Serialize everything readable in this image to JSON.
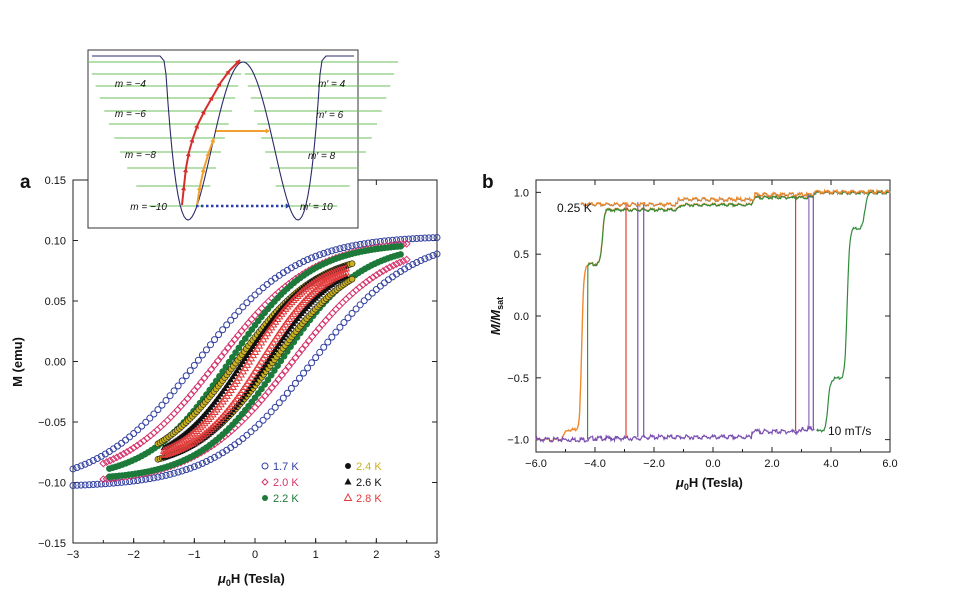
{
  "chart_data": [
    {
      "id": "a",
      "panel_label": "a",
      "type": "scatter",
      "title": "",
      "xlabel_main": "μ",
      "xlabel_sub": "0",
      "xlabel_tail": "H (Tesla)",
      "ylabel": "M (emu)",
      "xlim": [
        -3,
        3
      ],
      "ylim": [
        -0.15,
        0.15
      ],
      "x_ticks": [
        -3,
        -2,
        -1,
        0,
        1,
        2,
        3
      ],
      "x_tick_labels": [
        "−3",
        "−2",
        "−1",
        "0",
        "1",
        "2",
        "3"
      ],
      "y_ticks": [
        0.15,
        0.1,
        0.05,
        0,
        -0.05,
        -0.1,
        -0.15
      ],
      "y_tick_labels": [
        "0.15",
        "0.10",
        "0.05",
        "0.00",
        "−0.05",
        "−0.10",
        "−0.15"
      ],
      "legend_position": "bottom-right",
      "series": [
        {
          "name": "1.7 K",
          "legend": "1.7 K",
          "color": "#3340a0",
          "marker": "circle-open",
          "sweep_max": 3.0,
          "M_sat": 0.104,
          "M_rem": 0.055,
          "H_c": 0.95
        },
        {
          "name": "2.0 K",
          "legend": "2.0 K",
          "color": "#d6336c",
          "marker": "diamond-open",
          "sweep_max": 2.5,
          "M_sat": 0.101,
          "M_rem": 0.038,
          "H_c": 0.62
        },
        {
          "name": "2.2 K",
          "legend": "2.2 K",
          "color": "#1d7a3a",
          "marker": "circle-filled",
          "sweep_max": 2.4,
          "M_sat": 0.098,
          "M_rem": 0.03,
          "H_c": 0.42
        },
        {
          "name": "2.4 K",
          "legend": "2.4 K",
          "color": "#c9b21e",
          "marker": "circle-filled",
          "sweep_max": 1.6,
          "M_sat": 0.091,
          "M_rem": 0.02,
          "H_c": 0.3
        },
        {
          "name": "2.6 K",
          "legend": "2.6 K",
          "color": "#111111",
          "marker": "triangle-filled",
          "sweep_max": 1.5,
          "M_sat": 0.088,
          "M_rem": 0.015,
          "H_c": 0.2
        },
        {
          "name": "2.8 K",
          "legend": "2.8 K",
          "color": "#e23b3b",
          "marker": "triangle-open",
          "sweep_max": 1.5,
          "M_sat": 0.085,
          "M_rem": 0.008,
          "H_c": 0.1
        }
      ]
    },
    {
      "id": "inset",
      "type": "energy-diagram",
      "left_labels": [
        "m = −4",
        "m = −6",
        "m = −8",
        "m = −10"
      ],
      "right_labels": [
        "m′ = 4",
        "m′ = 6",
        "m′ = 8",
        "m′ = 10"
      ],
      "levels": 10,
      "arrow_colors": {
        "thermal": "#d62d2d",
        "assisted": "#f0a030",
        "tunnel": "#2a3fa8"
      }
    },
    {
      "id": "b",
      "panel_label": "b",
      "type": "line",
      "title": "",
      "xlabel_main": "μ",
      "xlabel_sub": "0",
      "xlabel_tail": "H (Tesla)",
      "ylabel_main": "M",
      "ylabel_mid": "/M",
      "ylabel_sub": "sat",
      "xlim": [
        -6,
        6
      ],
      "ylim": [
        -1.1,
        1.1
      ],
      "x_ticks": [
        -6,
        -4,
        -2,
        0,
        2,
        4,
        6
      ],
      "x_tick_labels": [
        "−6.0",
        "−4.0",
        "−2.0",
        "0.0",
        "2.0",
        "4.0",
        "6.0"
      ],
      "y_ticks": [
        1,
        0.5,
        0,
        -0.5,
        -1
      ],
      "y_tick_labels": [
        "1.0",
        "0.5",
        "0.0",
        "−0.5",
        "−1.0"
      ],
      "annotations": [
        "0.25 K",
        "10 mT/s"
      ],
      "series": [
        {
          "name": "sweep-orange",
          "color": "#f08a2a",
          "steps_up": [
            -5.1,
            -4.6,
            -3.7,
            -1.2,
            1.4
          ],
          "jump_field": -4.25
        },
        {
          "name": "sweep-green",
          "color": "#2e8b3a",
          "steps_down": [
            3.9,
            4.5,
            5.1
          ],
          "jump_field": -4.25
        },
        {
          "name": "sweep-red",
          "color": "#e04030",
          "jump_up": -2.95,
          "jump_down": 2.8
        },
        {
          "name": "sweep-purple",
          "color": "#7a4fb0",
          "jump_up": -2.55,
          "jump_down": 3.4
        }
      ]
    }
  ]
}
